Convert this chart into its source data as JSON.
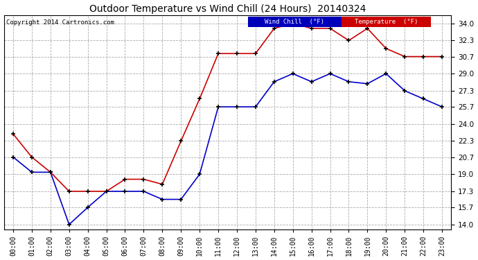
{
  "title": "Outdoor Temperature vs Wind Chill (24 Hours)  20140324",
  "copyright": "Copyright 2014 Cartronics.com",
  "x_labels": [
    "00:00",
    "01:00",
    "02:00",
    "03:00",
    "04:00",
    "05:00",
    "06:00",
    "07:00",
    "08:00",
    "09:00",
    "10:00",
    "11:00",
    "12:00",
    "13:00",
    "14:00",
    "15:00",
    "16:00",
    "17:00",
    "18:00",
    "19:00",
    "20:00",
    "21:00",
    "22:00",
    "23:00"
  ],
  "temperature": [
    23.0,
    20.7,
    19.2,
    17.3,
    17.3,
    17.3,
    18.5,
    18.5,
    18.0,
    22.3,
    26.5,
    31.0,
    31.0,
    31.0,
    33.5,
    34.0,
    33.5,
    33.5,
    32.3,
    33.5,
    31.5,
    30.7,
    30.7,
    30.7
  ],
  "wind_chill": [
    20.7,
    19.2,
    19.2,
    14.0,
    15.7,
    17.3,
    17.3,
    17.3,
    16.5,
    16.5,
    19.0,
    25.7,
    25.7,
    25.7,
    28.2,
    29.0,
    28.2,
    29.0,
    28.2,
    28.0,
    29.0,
    27.3,
    26.5,
    25.7
  ],
  "temp_color": "#cc0000",
  "wind_chill_color": "#0000cc",
  "background_color": "#ffffff",
  "grid_color": "#aaaaaa",
  "y_ticks": [
    14.0,
    15.7,
    17.3,
    19.0,
    20.7,
    22.3,
    24.0,
    25.7,
    27.3,
    29.0,
    30.7,
    32.3,
    34.0
  ],
  "ylim": [
    13.5,
    34.8
  ],
  "legend_wind_chill_bg": "#0000bb",
  "legend_temp_bg": "#cc0000",
  "legend_wind_chill_text": "Wind Chill  (°F)",
  "legend_temp_text": "Temperature  (°F)"
}
